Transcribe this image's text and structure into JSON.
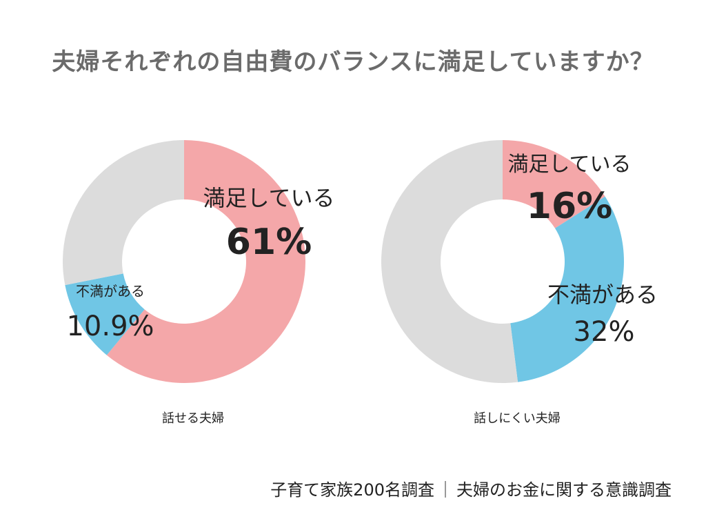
{
  "title": "夫婦それぞれの自由費のバランスに満足していますか？",
  "footer": {
    "source": "子育て家族200名調査",
    "separator": "｜",
    "survey": "夫婦のお金に関する意識調査"
  },
  "colors": {
    "satisfied": "#f4a7a9",
    "dissatisfied": "#70c6e5",
    "other": "#dcdcdc",
    "title": "#6b6b6b"
  },
  "chart_data": [
    {
      "type": "pie",
      "donut": true,
      "caption": "話せる夫婦",
      "slices": [
        {
          "key": "satisfied",
          "name": "満足している",
          "value": 61,
          "label": "61%"
        },
        {
          "key": "dissatisfied",
          "name": "不満がある",
          "value": 10.9,
          "label": "10.9%"
        },
        {
          "key": "other",
          "name": "",
          "value": 28.1,
          "label": ""
        }
      ]
    },
    {
      "type": "pie",
      "donut": true,
      "caption": "話しにくい夫婦",
      "slices": [
        {
          "key": "satisfied",
          "name": "満足している",
          "value": 16,
          "label": "16%"
        },
        {
          "key": "dissatisfied",
          "name": "不満がある",
          "value": 32,
          "label": "32%"
        },
        {
          "key": "other",
          "name": "",
          "value": 52,
          "label": ""
        }
      ]
    }
  ]
}
